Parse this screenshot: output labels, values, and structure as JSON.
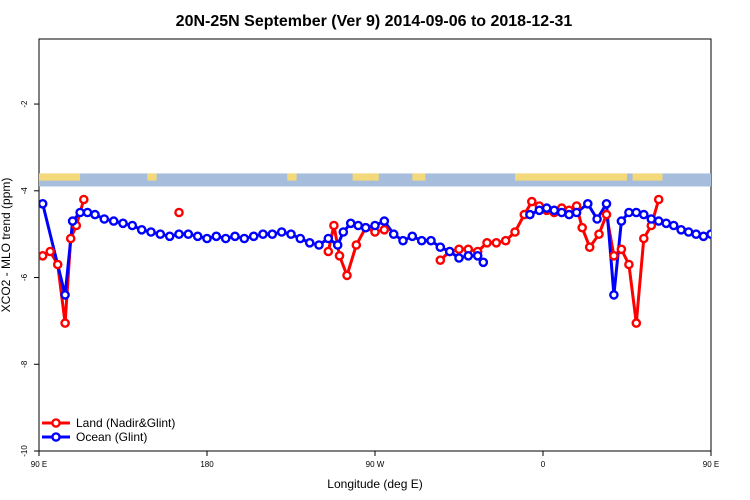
{
  "chart_data": {
    "type": "line",
    "title": "20N-25N September (Ver 9)   2014-09-06 to 2018-12-31",
    "xlabel": "Longitude (deg E)",
    "ylabel": "XCO2 - MLO trend (ppm)",
    "xlim": [
      90,
      450
    ],
    "ylim": [
      -10,
      -0.5
    ],
    "x_ticks": [
      {
        "value": 90,
        "label": "90 E"
      },
      {
        "value": 180,
        "label": "180"
      },
      {
        "value": 270,
        "label": "90 W"
      },
      {
        "value": 360,
        "label": "0"
      },
      {
        "value": 450,
        "label": "90 E"
      },
      {
        "value": 540,
        "label": "180"
      }
    ],
    "y_ticks": [
      {
        "value": -2,
        "label": "-2"
      },
      {
        "value": -4,
        "label": "-4"
      },
      {
        "value": -6,
        "label": "-6"
      },
      {
        "value": -8,
        "label": "-8"
      },
      {
        "value": -10,
        "label": "-10"
      }
    ],
    "land_strip": {
      "y_top": -3.6,
      "y_bottom": -3.9,
      "ocean_color": "#a6bddb",
      "land_color": "#f4d97a"
    },
    "legend_position": "bottom-left",
    "series": [
      {
        "name": "Land (Nadir&Glint)",
        "color": "#ff0000",
        "points": [
          [
            92,
            -5.5
          ],
          [
            96,
            -5.4
          ],
          [
            100,
            -5.7
          ],
          [
            104,
            -7.05
          ],
          [
            107,
            -5.1
          ],
          [
            110,
            -4.8
          ],
          [
            114,
            -4.2
          ],
          [
            165,
            -4.5
          ],
          [
            245,
            -5.4
          ],
          [
            248,
            -4.8
          ],
          [
            251,
            -5.5
          ],
          [
            255,
            -5.95
          ],
          [
            260,
            -5.25
          ],
          [
            265,
            -4.85
          ],
          [
            270,
            -4.95
          ],
          [
            275,
            -4.9
          ],
          [
            305,
            -5.6
          ],
          [
            310,
            -5.4
          ],
          [
            315,
            -5.35
          ],
          [
            320,
            -5.35
          ],
          [
            325,
            -5.4
          ],
          [
            330,
            -5.2
          ],
          [
            335,
            -5.2
          ],
          [
            340,
            -5.15
          ],
          [
            345,
            -4.95
          ],
          [
            350,
            -4.55
          ],
          [
            354,
            -4.25
          ],
          [
            358,
            -4.35
          ],
          [
            362,
            -4.45
          ],
          [
            366,
            -4.5
          ],
          [
            370,
            -4.4
          ],
          [
            374,
            -4.45
          ],
          [
            378,
            -4.35
          ],
          [
            381,
            -4.85
          ],
          [
            385,
            -5.3
          ],
          [
            390,
            -5.0
          ],
          [
            394,
            -4.55
          ],
          [
            398,
            -5.5
          ],
          [
            402,
            -5.35
          ],
          [
            406,
            -5.7
          ],
          [
            410,
            -7.05
          ],
          [
            414,
            -5.1
          ],
          [
            418,
            -4.8
          ],
          [
            422,
            -4.2
          ]
        ]
      },
      {
        "name": "Ocean (Glint)",
        "color": "#0000ff",
        "points": [
          [
            92,
            -4.3
          ],
          [
            104,
            -6.4
          ],
          [
            108,
            -4.7
          ],
          [
            112,
            -4.5
          ],
          [
            116,
            -4.5
          ],
          [
            120,
            -4.55
          ],
          [
            125,
            -4.65
          ],
          [
            130,
            -4.7
          ],
          [
            135,
            -4.75
          ],
          [
            140,
            -4.8
          ],
          [
            145,
            -4.9
          ],
          [
            150,
            -4.95
          ],
          [
            155,
            -5.0
          ],
          [
            160,
            -5.05
          ],
          [
            165,
            -5.0
          ],
          [
            170,
            -5.0
          ],
          [
            175,
            -5.05
          ],
          [
            180,
            -5.1
          ],
          [
            185,
            -5.05
          ],
          [
            190,
            -5.1
          ],
          [
            195,
            -5.05
          ],
          [
            200,
            -5.1
          ],
          [
            205,
            -5.05
          ],
          [
            210,
            -5.0
          ],
          [
            215,
            -5.0
          ],
          [
            220,
            -4.95
          ],
          [
            225,
            -5.0
          ],
          [
            230,
            -5.1
          ],
          [
            235,
            -5.2
          ],
          [
            240,
            -5.25
          ],
          [
            245,
            -5.1
          ],
          [
            250,
            -5.25
          ],
          [
            253,
            -4.95
          ],
          [
            257,
            -4.75
          ],
          [
            261,
            -4.8
          ],
          [
            265,
            -4.85
          ],
          [
            270,
            -4.8
          ],
          [
            275,
            -4.7
          ],
          [
            280,
            -5.0
          ],
          [
            285,
            -5.15
          ],
          [
            290,
            -5.05
          ],
          [
            295,
            -5.15
          ],
          [
            300,
            -5.15
          ],
          [
            305,
            -5.3
          ],
          [
            310,
            -5.4
          ],
          [
            315,
            -5.55
          ],
          [
            320,
            -5.5
          ],
          [
            325,
            -5.5
          ],
          [
            328,
            -5.65
          ],
          [
            353,
            -4.55
          ],
          [
            358,
            -4.45
          ],
          [
            362,
            -4.4
          ],
          [
            366,
            -4.45
          ],
          [
            370,
            -4.5
          ],
          [
            374,
            -4.55
          ],
          [
            378,
            -4.5
          ],
          [
            384,
            -4.3
          ],
          [
            389,
            -4.65
          ],
          [
            394,
            -4.3
          ],
          [
            398,
            -6.4
          ],
          [
            402,
            -4.7
          ],
          [
            406,
            -4.5
          ],
          [
            410,
            -4.5
          ],
          [
            414,
            -4.55
          ],
          [
            418,
            -4.65
          ],
          [
            422,
            -4.7
          ],
          [
            426,
            -4.75
          ],
          [
            430,
            -4.8
          ],
          [
            434,
            -4.9
          ],
          [
            438,
            -4.95
          ],
          [
            442,
            -5.0
          ],
          [
            446,
            -5.05
          ],
          [
            450,
            -5.0
          ]
        ]
      }
    ]
  }
}
